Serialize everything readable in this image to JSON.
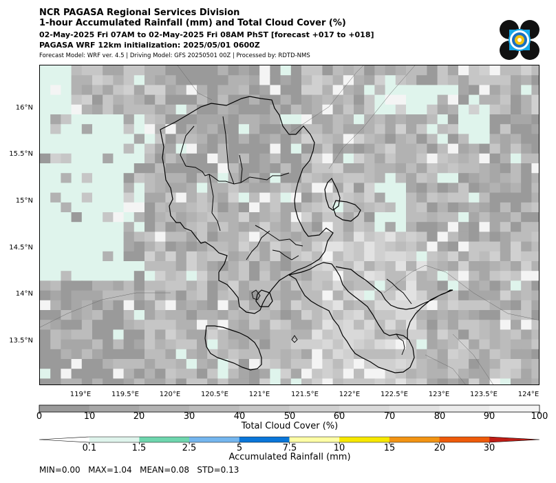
{
  "header": {
    "line1": "NCR PAGASA Regional Services Division",
    "line2": "1-hour Accumulated Rainfall (mm) and Total Cloud Cover (%)",
    "line3": "02-May-2025 Fri 07AM to 02-May-2025 Fri 08AM PhST [forecast +017 to +018]",
    "line4": "PAGASA WRF 12km initialization: 2025/05/01 0600Z",
    "line5": "Forecast Model: WRF ver. 4.5 | Driving Model: GFS 20250501 00Z | Processed by: RDTD-NMS"
  },
  "logo": {
    "icon": "pagasa-logo-icon"
  },
  "map": {
    "lat_labels": [
      "16°N",
      "15.5°N",
      "15°N",
      "14.5°N",
      "14°N",
      "13.5°N"
    ],
    "lon_labels": [
      "119°E",
      "119.5°E",
      "120°E",
      "120.5°E",
      "121°E",
      "121.5°E",
      "122°E",
      "122.5°E",
      "123°E",
      "123.5°E",
      "124°E"
    ]
  },
  "cloud_colorbar": {
    "label": "Total Cloud Cover (%)",
    "ticks": [
      "0",
      "10",
      "20",
      "30",
      "40",
      "50",
      "60",
      "70",
      "80",
      "90",
      "100"
    ],
    "colors": [
      "#9a9a9a",
      "#a7a7a7",
      "#b2b2b2",
      "#bcbcbc",
      "#c6c6c6",
      "#d0d0d0",
      "#d9d9d9",
      "#e2e2e2",
      "#ebebeb",
      "#f4f4f4"
    ]
  },
  "rain_colorbar": {
    "label": "Accumulated Rainfall (mm)",
    "ticks": [
      "0.1",
      "1.5",
      "2.5",
      "5",
      "7.5",
      "10",
      "15",
      "20",
      "30"
    ],
    "colors": [
      "#ffffff",
      "#dff4ec",
      "#6fd6ae",
      "#75b6ee",
      "#0a76d9",
      "#ffffa6",
      "#f7e800",
      "#f29413",
      "#ee5b0a",
      "#c01d16"
    ]
  },
  "stats": "MIN=0.00   MAX=1.04   MEAN=0.08   STD=0.13"
}
